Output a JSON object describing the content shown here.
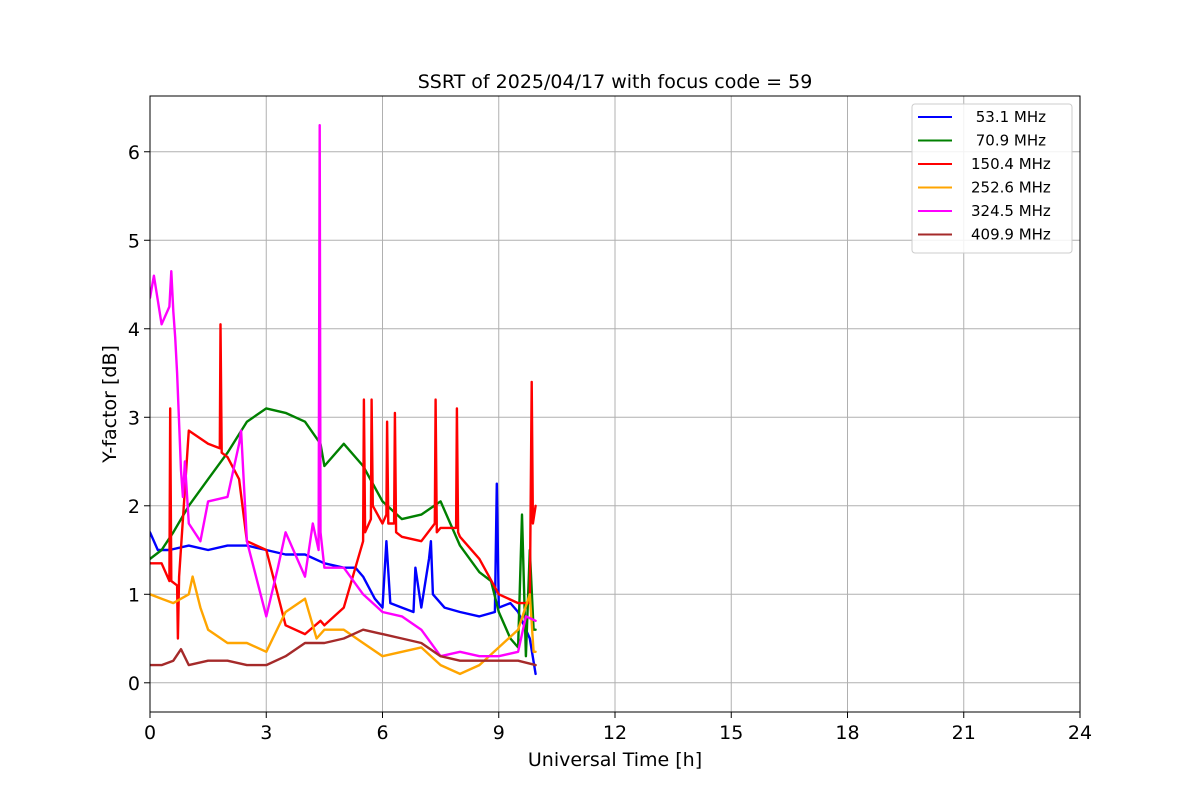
{
  "chart_data": {
    "type": "line",
    "title": "SSRT of 2025/04/17 with focus code = 59",
    "xlabel": "Universal Time [h]",
    "ylabel": "Y-factor [dB]",
    "xlim": [
      0,
      24
    ],
    "ylim": [
      -0.33,
      6.63
    ],
    "xticks": [
      0,
      3,
      6,
      9,
      12,
      15,
      18,
      21,
      24
    ],
    "yticks": [
      0,
      1,
      2,
      3,
      4,
      5,
      6
    ],
    "grid": true,
    "legend_position": "top-right",
    "series": [
      {
        "name": " 53.1 MHz",
        "color": "#0000ff",
        "x": [
          0,
          0.2,
          0.5,
          1.0,
          1.5,
          2.0,
          2.5,
          3.0,
          3.5,
          4.0,
          4.5,
          5.0,
          5.3,
          5.5,
          5.8,
          6.0,
          6.1,
          6.2,
          6.5,
          6.8,
          6.85,
          7.0,
          7.2,
          7.25,
          7.3,
          7.6,
          8.0,
          8.5,
          8.9,
          8.95,
          9.0,
          9.3,
          9.5,
          9.8,
          9.95
        ],
        "y": [
          1.7,
          1.5,
          1.5,
          1.55,
          1.5,
          1.55,
          1.55,
          1.5,
          1.45,
          1.45,
          1.35,
          1.3,
          1.3,
          1.2,
          0.95,
          0.85,
          1.6,
          0.9,
          0.85,
          0.8,
          1.3,
          0.85,
          1.4,
          1.6,
          1.0,
          0.85,
          0.8,
          0.75,
          0.8,
          2.25,
          0.85,
          0.9,
          0.8,
          0.5,
          0.1
        ]
      },
      {
        "name": " 70.9 MHz",
        "color": "#008000",
        "x": [
          0,
          0.3,
          0.6,
          1.0,
          1.5,
          2.0,
          2.5,
          3.0,
          3.5,
          4.0,
          4.4,
          4.5,
          5.0,
          5.5,
          6.0,
          6.5,
          7.0,
          7.5,
          8.0,
          8.5,
          8.8,
          9.0,
          9.3,
          9.5,
          9.6,
          9.7,
          9.8,
          9.9,
          9.95
        ],
        "y": [
          1.4,
          1.5,
          1.7,
          2.0,
          2.3,
          2.6,
          2.95,
          3.1,
          3.05,
          2.95,
          2.7,
          2.45,
          2.7,
          2.45,
          2.05,
          1.85,
          1.9,
          2.05,
          1.55,
          1.25,
          1.15,
          0.8,
          0.5,
          0.4,
          1.9,
          0.3,
          1.5,
          0.6,
          0.6
        ]
      },
      {
        "name": "150.4 MHz",
        "color": "#ff0000",
        "x": [
          0,
          0.3,
          0.5,
          0.52,
          0.55,
          0.7,
          0.72,
          0.75,
          1.0,
          1.5,
          1.8,
          1.82,
          1.85,
          2.0,
          2.3,
          2.5,
          3.0,
          3.5,
          4.0,
          4.4,
          4.5,
          5.0,
          5.5,
          5.52,
          5.55,
          5.7,
          5.72,
          5.75,
          6.0,
          6.1,
          6.12,
          6.15,
          6.3,
          6.32,
          6.35,
          6.5,
          7.0,
          7.35,
          7.37,
          7.4,
          7.5,
          7.9,
          7.92,
          7.95,
          8.0,
          8.5,
          9.0,
          9.5,
          9.8,
          9.85,
          9.88,
          9.95
        ],
        "y": [
          1.35,
          1.35,
          1.15,
          3.1,
          1.15,
          1.1,
          0.5,
          1.2,
          2.85,
          2.7,
          2.65,
          4.05,
          2.6,
          2.55,
          2.3,
          1.6,
          1.5,
          0.65,
          0.55,
          0.7,
          0.65,
          0.85,
          1.6,
          3.2,
          1.7,
          1.85,
          3.2,
          2.0,
          1.8,
          1.9,
          2.95,
          1.8,
          1.8,
          3.05,
          1.7,
          1.65,
          1.6,
          1.8,
          3.2,
          1.7,
          1.75,
          1.75,
          3.1,
          1.7,
          1.65,
          1.4,
          1.0,
          0.9,
          0.9,
          3.4,
          1.8,
          2.0
        ]
      },
      {
        "name": "252.6 MHz",
        "color": "#ffa500",
        "x": [
          0,
          0.3,
          0.6,
          1.0,
          1.1,
          1.3,
          1.5,
          2.0,
          2.5,
          3.0,
          3.5,
          4.0,
          4.3,
          4.5,
          5.0,
          5.5,
          6.0,
          6.5,
          7.0,
          7.5,
          8.0,
          8.5,
          9.0,
          9.5,
          9.8,
          9.9,
          9.95
        ],
        "y": [
          1.0,
          0.95,
          0.9,
          1.0,
          1.2,
          0.85,
          0.6,
          0.45,
          0.45,
          0.35,
          0.8,
          0.95,
          0.5,
          0.6,
          0.6,
          0.45,
          0.3,
          0.35,
          0.4,
          0.2,
          0.1,
          0.2,
          0.4,
          0.6,
          1.0,
          0.35,
          0.35
        ]
      },
      {
        "name": "324.5 MHz",
        "color": "#ff00ff",
        "x": [
          0,
          0.1,
          0.3,
          0.5,
          0.55,
          0.6,
          0.65,
          0.7,
          0.8,
          0.85,
          0.9,
          1.0,
          1.3,
          1.5,
          2.0,
          2.3,
          2.35,
          2.5,
          3.0,
          3.3,
          3.5,
          4.0,
          4.2,
          4.35,
          4.38,
          4.4,
          4.5,
          5.0,
          5.5,
          6.0,
          6.5,
          7.0,
          7.5,
          8.0,
          8.5,
          9.0,
          9.5,
          9.7,
          9.95
        ],
        "y": [
          4.35,
          4.6,
          4.05,
          4.25,
          4.65,
          4.2,
          3.9,
          3.5,
          2.4,
          2.1,
          2.5,
          1.8,
          1.6,
          2.05,
          2.1,
          2.7,
          2.85,
          1.6,
          0.75,
          1.3,
          1.7,
          1.2,
          1.8,
          1.5,
          6.3,
          1.7,
          1.3,
          1.3,
          1.0,
          0.8,
          0.75,
          0.6,
          0.3,
          0.35,
          0.3,
          0.3,
          0.35,
          0.75,
          0.7
        ]
      },
      {
        "name": "409.9 MHz",
        "color": "#a52a2a",
        "x": [
          0,
          0.3,
          0.6,
          0.8,
          1.0,
          1.5,
          2.0,
          2.5,
          3.0,
          3.5,
          4.0,
          4.5,
          5.0,
          5.5,
          6.0,
          6.5,
          7.0,
          7.5,
          8.0,
          8.5,
          9.0,
          9.5,
          9.95
        ],
        "y": [
          0.2,
          0.2,
          0.25,
          0.38,
          0.2,
          0.25,
          0.25,
          0.2,
          0.2,
          0.3,
          0.45,
          0.45,
          0.5,
          0.6,
          0.55,
          0.5,
          0.45,
          0.3,
          0.25,
          0.25,
          0.25,
          0.25,
          0.2
        ]
      }
    ]
  }
}
